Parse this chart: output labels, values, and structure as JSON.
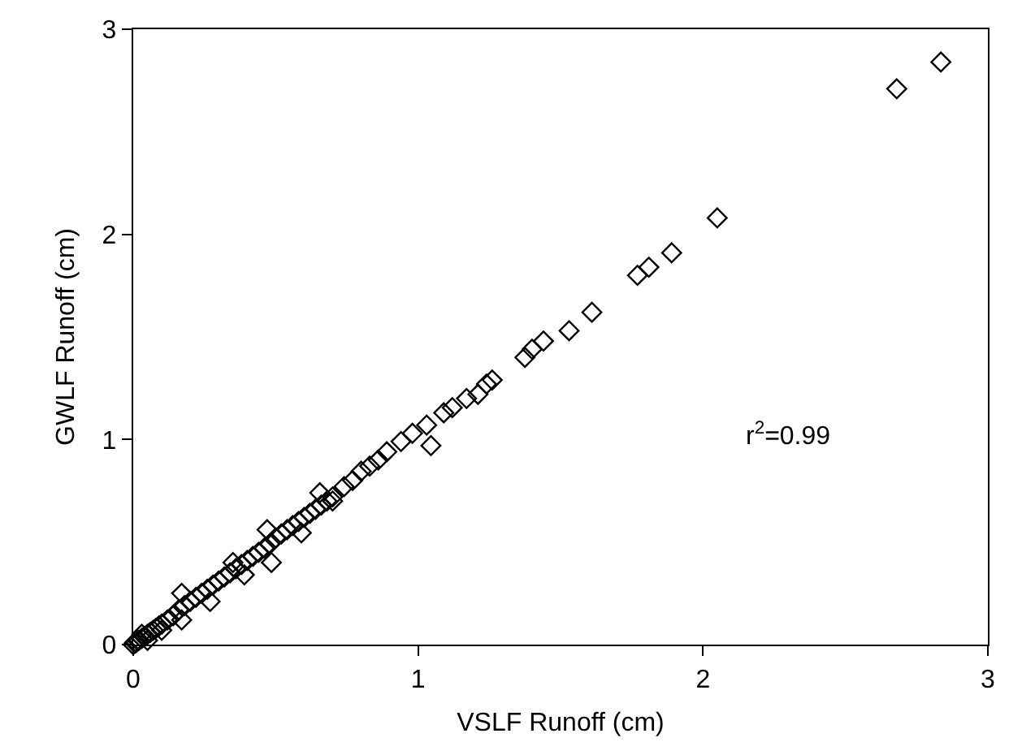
{
  "chart_data": {
    "type": "scatter",
    "xlabel": "VSLF Runoff (cm)",
    "ylabel": "GWLF Runoff (cm)",
    "annotations": [
      "r$^{2}$=0.99"
    ],
    "xlim": [
      0,
      3
    ],
    "ylim": [
      0,
      3
    ],
    "xticks": [
      0,
      1,
      2,
      3
    ],
    "yticks": [
      0,
      1,
      2,
      3
    ],
    "legend": false,
    "marker": "diamond",
    "series": [
      {
        "color": "#000000",
        "x": [
          0.0,
          0.005,
          0.01,
          0.015,
          0.02,
          0.03,
          0.04,
          0.05,
          0.06,
          0.07,
          0.08,
          0.09,
          0.1,
          0.12,
          0.14,
          0.16,
          0.18,
          0.2,
          0.22,
          0.24,
          0.26,
          0.28,
          0.3,
          0.32,
          0.34,
          0.36,
          0.38,
          0.4,
          0.42,
          0.44,
          0.46,
          0.48,
          0.5,
          0.52,
          0.54,
          0.56,
          0.58,
          0.6,
          0.62,
          0.64,
          0.66,
          0.68,
          0.7,
          0.74,
          0.77,
          0.8,
          0.83,
          0.86,
          0.89,
          0.94,
          0.98,
          1.03,
          1.09,
          1.12,
          1.17,
          1.21,
          1.24,
          1.26,
          1.375,
          1.4,
          1.44,
          1.53,
          1.61,
          1.77,
          1.81,
          1.89,
          2.05,
          2.68,
          2.835,
          1.045,
          0.7,
          0.655,
          0.59,
          0.485,
          0.47,
          0.39,
          0.35,
          0.27,
          0.17,
          0.17,
          0.1,
          0.05,
          0.03
        ],
        "values": [
          0.0,
          0.01,
          0.01,
          0.02,
          0.02,
          0.03,
          0.04,
          0.05,
          0.06,
          0.07,
          0.08,
          0.09,
          0.1,
          0.12,
          0.14,
          0.17,
          0.19,
          0.21,
          0.23,
          0.25,
          0.27,
          0.29,
          0.31,
          0.33,
          0.35,
          0.37,
          0.39,
          0.41,
          0.43,
          0.45,
          0.47,
          0.49,
          0.52,
          0.54,
          0.56,
          0.58,
          0.6,
          0.62,
          0.64,
          0.66,
          0.68,
          0.7,
          0.72,
          0.77,
          0.8,
          0.845,
          0.87,
          0.9,
          0.94,
          0.99,
          1.03,
          1.07,
          1.13,
          1.155,
          1.2,
          1.22,
          1.27,
          1.29,
          1.4,
          1.44,
          1.48,
          1.53,
          1.62,
          1.8,
          1.84,
          1.91,
          2.08,
          2.71,
          2.84,
          0.97,
          0.7,
          0.74,
          0.545,
          0.4,
          0.56,
          0.34,
          0.4,
          0.21,
          0.25,
          0.12,
          0.07,
          0.02,
          0.05
        ]
      }
    ]
  }
}
